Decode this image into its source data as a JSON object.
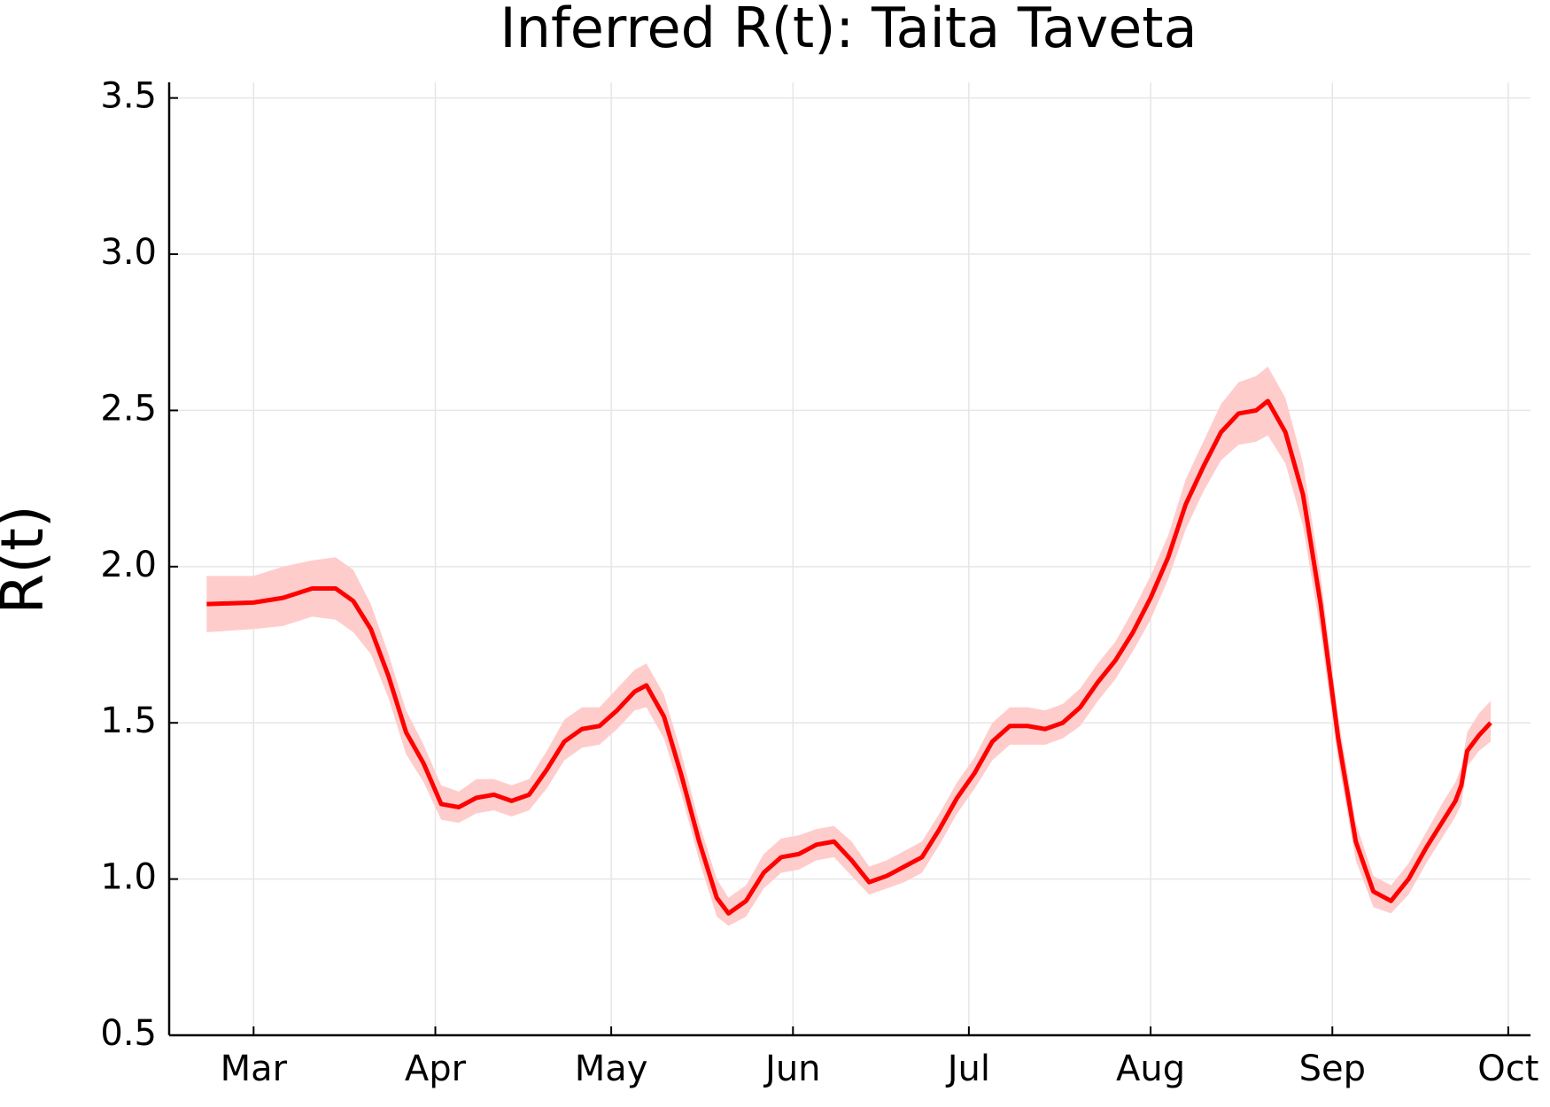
{
  "chart_data": {
    "type": "line",
    "title": "Inferred R(t): Taita Taveta",
    "y_label": "R(t)",
    "color": "#ff0000",
    "band_color": "#ffcccc",
    "grid": true,
    "x": [
      -8,
      0,
      5,
      10,
      14,
      17,
      20,
      23,
      26,
      29,
      32,
      35,
      38,
      41,
      44,
      47,
      50,
      53,
      56,
      59,
      62,
      65,
      67,
      70,
      73,
      76,
      79,
      81,
      84,
      87,
      90,
      93,
      96,
      99,
      102,
      105,
      108,
      111,
      114,
      117,
      120,
      123,
      126,
      129,
      132,
      135,
      138,
      141,
      144,
      147,
      150,
      153,
      156,
      159,
      162,
      165,
      168,
      171,
      173,
      176,
      179,
      182,
      185,
      188,
      191,
      194,
      197,
      200,
      203,
      205,
      206,
      207,
      209,
      211
    ],
    "values": [
      1.88,
      1.885,
      1.9,
      1.93,
      1.93,
      1.89,
      1.8,
      1.65,
      1.47,
      1.37,
      1.24,
      1.23,
      1.26,
      1.27,
      1.25,
      1.27,
      1.35,
      1.44,
      1.48,
      1.49,
      1.54,
      1.6,
      1.62,
      1.52,
      1.33,
      1.12,
      0.94,
      0.89,
      0.93,
      1.02,
      1.07,
      1.08,
      1.11,
      1.12,
      1.06,
      0.99,
      1.01,
      1.04,
      1.07,
      1.16,
      1.26,
      1.34,
      1.44,
      1.49,
      1.49,
      1.48,
      1.5,
      1.55,
      1.63,
      1.7,
      1.79,
      1.9,
      2.03,
      2.2,
      2.32,
      2.43,
      2.49,
      2.5,
      2.53,
      2.43,
      2.23,
      1.88,
      1.45,
      1.12,
      0.96,
      0.93,
      1.0,
      1.1,
      1.19,
      1.25,
      1.3,
      1.41,
      1.46,
      1.5
    ],
    "lower": [
      1.79,
      1.8,
      1.81,
      1.84,
      1.83,
      1.79,
      1.72,
      1.58,
      1.4,
      1.31,
      1.19,
      1.18,
      1.21,
      1.22,
      1.2,
      1.22,
      1.29,
      1.38,
      1.42,
      1.43,
      1.48,
      1.54,
      1.55,
      1.45,
      1.27,
      1.06,
      0.88,
      0.85,
      0.88,
      0.97,
      1.02,
      1.03,
      1.06,
      1.07,
      1.01,
      0.95,
      0.97,
      0.99,
      1.02,
      1.11,
      1.21,
      1.29,
      1.38,
      1.43,
      1.43,
      1.43,
      1.45,
      1.49,
      1.57,
      1.64,
      1.73,
      1.83,
      1.96,
      2.12,
      2.24,
      2.34,
      2.39,
      2.4,
      2.42,
      2.33,
      2.13,
      1.79,
      1.38,
      1.06,
      0.91,
      0.89,
      0.95,
      1.05,
      1.14,
      1.2,
      1.24,
      1.36,
      1.41,
      1.44
    ],
    "upper": [
      1.97,
      1.97,
      2.0,
      2.02,
      2.03,
      1.99,
      1.88,
      1.72,
      1.54,
      1.43,
      1.3,
      1.28,
      1.32,
      1.32,
      1.3,
      1.32,
      1.41,
      1.51,
      1.55,
      1.55,
      1.61,
      1.67,
      1.69,
      1.59,
      1.4,
      1.18,
      1.0,
      0.94,
      0.98,
      1.08,
      1.13,
      1.14,
      1.16,
      1.17,
      1.12,
      1.04,
      1.06,
      1.09,
      1.12,
      1.21,
      1.31,
      1.39,
      1.5,
      1.55,
      1.55,
      1.54,
      1.56,
      1.61,
      1.69,
      1.76,
      1.86,
      1.97,
      2.1,
      2.28,
      2.4,
      2.52,
      2.59,
      2.61,
      2.64,
      2.54,
      2.33,
      1.97,
      1.52,
      1.18,
      1.01,
      0.98,
      1.05,
      1.15,
      1.25,
      1.31,
      1.36,
      1.47,
      1.53,
      1.57
    ],
    "xlim": [
      -14.4,
      217.8
    ],
    "xticks": [
      {
        "value": 0,
        "label": "Mar"
      },
      {
        "value": 31,
        "label": "Apr"
      },
      {
        "value": 61,
        "label": "May"
      },
      {
        "value": 92,
        "label": "Jun"
      },
      {
        "value": 122,
        "label": "Jul"
      },
      {
        "value": 153,
        "label": "Aug"
      },
      {
        "value": 184,
        "label": "Sep"
      },
      {
        "value": 214,
        "label": "Oct"
      }
    ],
    "ylim": [
      0.5,
      3.55
    ],
    "yticks": [
      {
        "value": 0.5,
        "label": "0.5"
      },
      {
        "value": 1,
        "label": "1.0"
      },
      {
        "value": 1.5,
        "label": "1.5"
      },
      {
        "value": 2,
        "label": "2.0"
      },
      {
        "value": 2.5,
        "label": "2.5"
      },
      {
        "value": 3,
        "label": "3.0"
      },
      {
        "value": 3.5,
        "label": "3.5"
      }
    ]
  }
}
